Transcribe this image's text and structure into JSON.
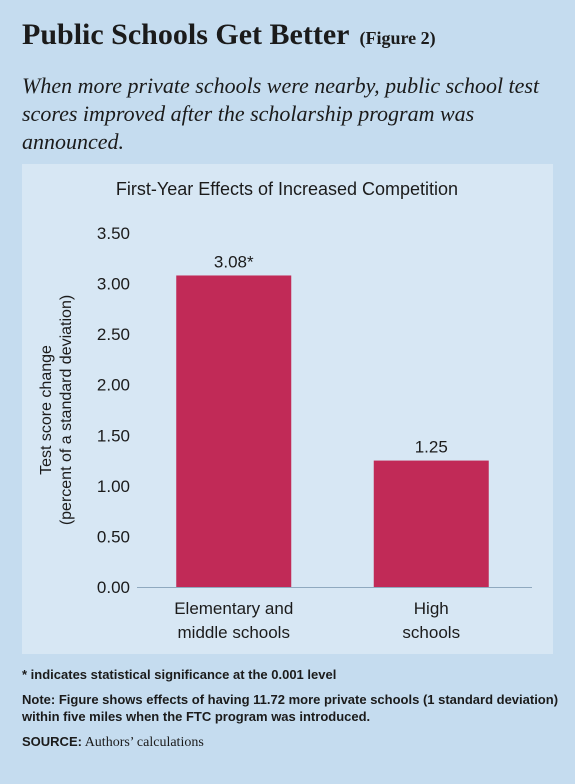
{
  "header": {
    "title": "Public Schools Get Better",
    "figure_label": "(Figure 2)",
    "subtitle": "When more private schools were nearby, public school test scores improved after the scholarship program was announced."
  },
  "chart_data": {
    "type": "bar",
    "title": "First-Year Effects of Increased Competition",
    "ylabel_line1": "Test score change",
    "ylabel_line2": "(percent of a standard deviation)",
    "xlabel": "",
    "categories": [
      [
        "Elementary and",
        "middle schools"
      ],
      [
        "High",
        "schools"
      ]
    ],
    "values": [
      3.08,
      1.25
    ],
    "data_labels": [
      "3.08*",
      "1.25"
    ],
    "ylim": [
      0,
      3.5
    ],
    "yticks": [
      "0.00",
      "0.50",
      "1.00",
      "1.50",
      "2.00",
      "2.50",
      "3.00",
      "3.50"
    ],
    "grid": false,
    "bar_color": "#c12a57"
  },
  "footnotes": {
    "significance": "* indicates statistical significance at the 0.001 level",
    "note": "Note: Figure shows effects of having 11.72 more private schools (1 standard deviation) within five miles when the FTC program was introduced.",
    "source_label": "SOURCE:",
    "source_text": "Authors’ calculations"
  }
}
